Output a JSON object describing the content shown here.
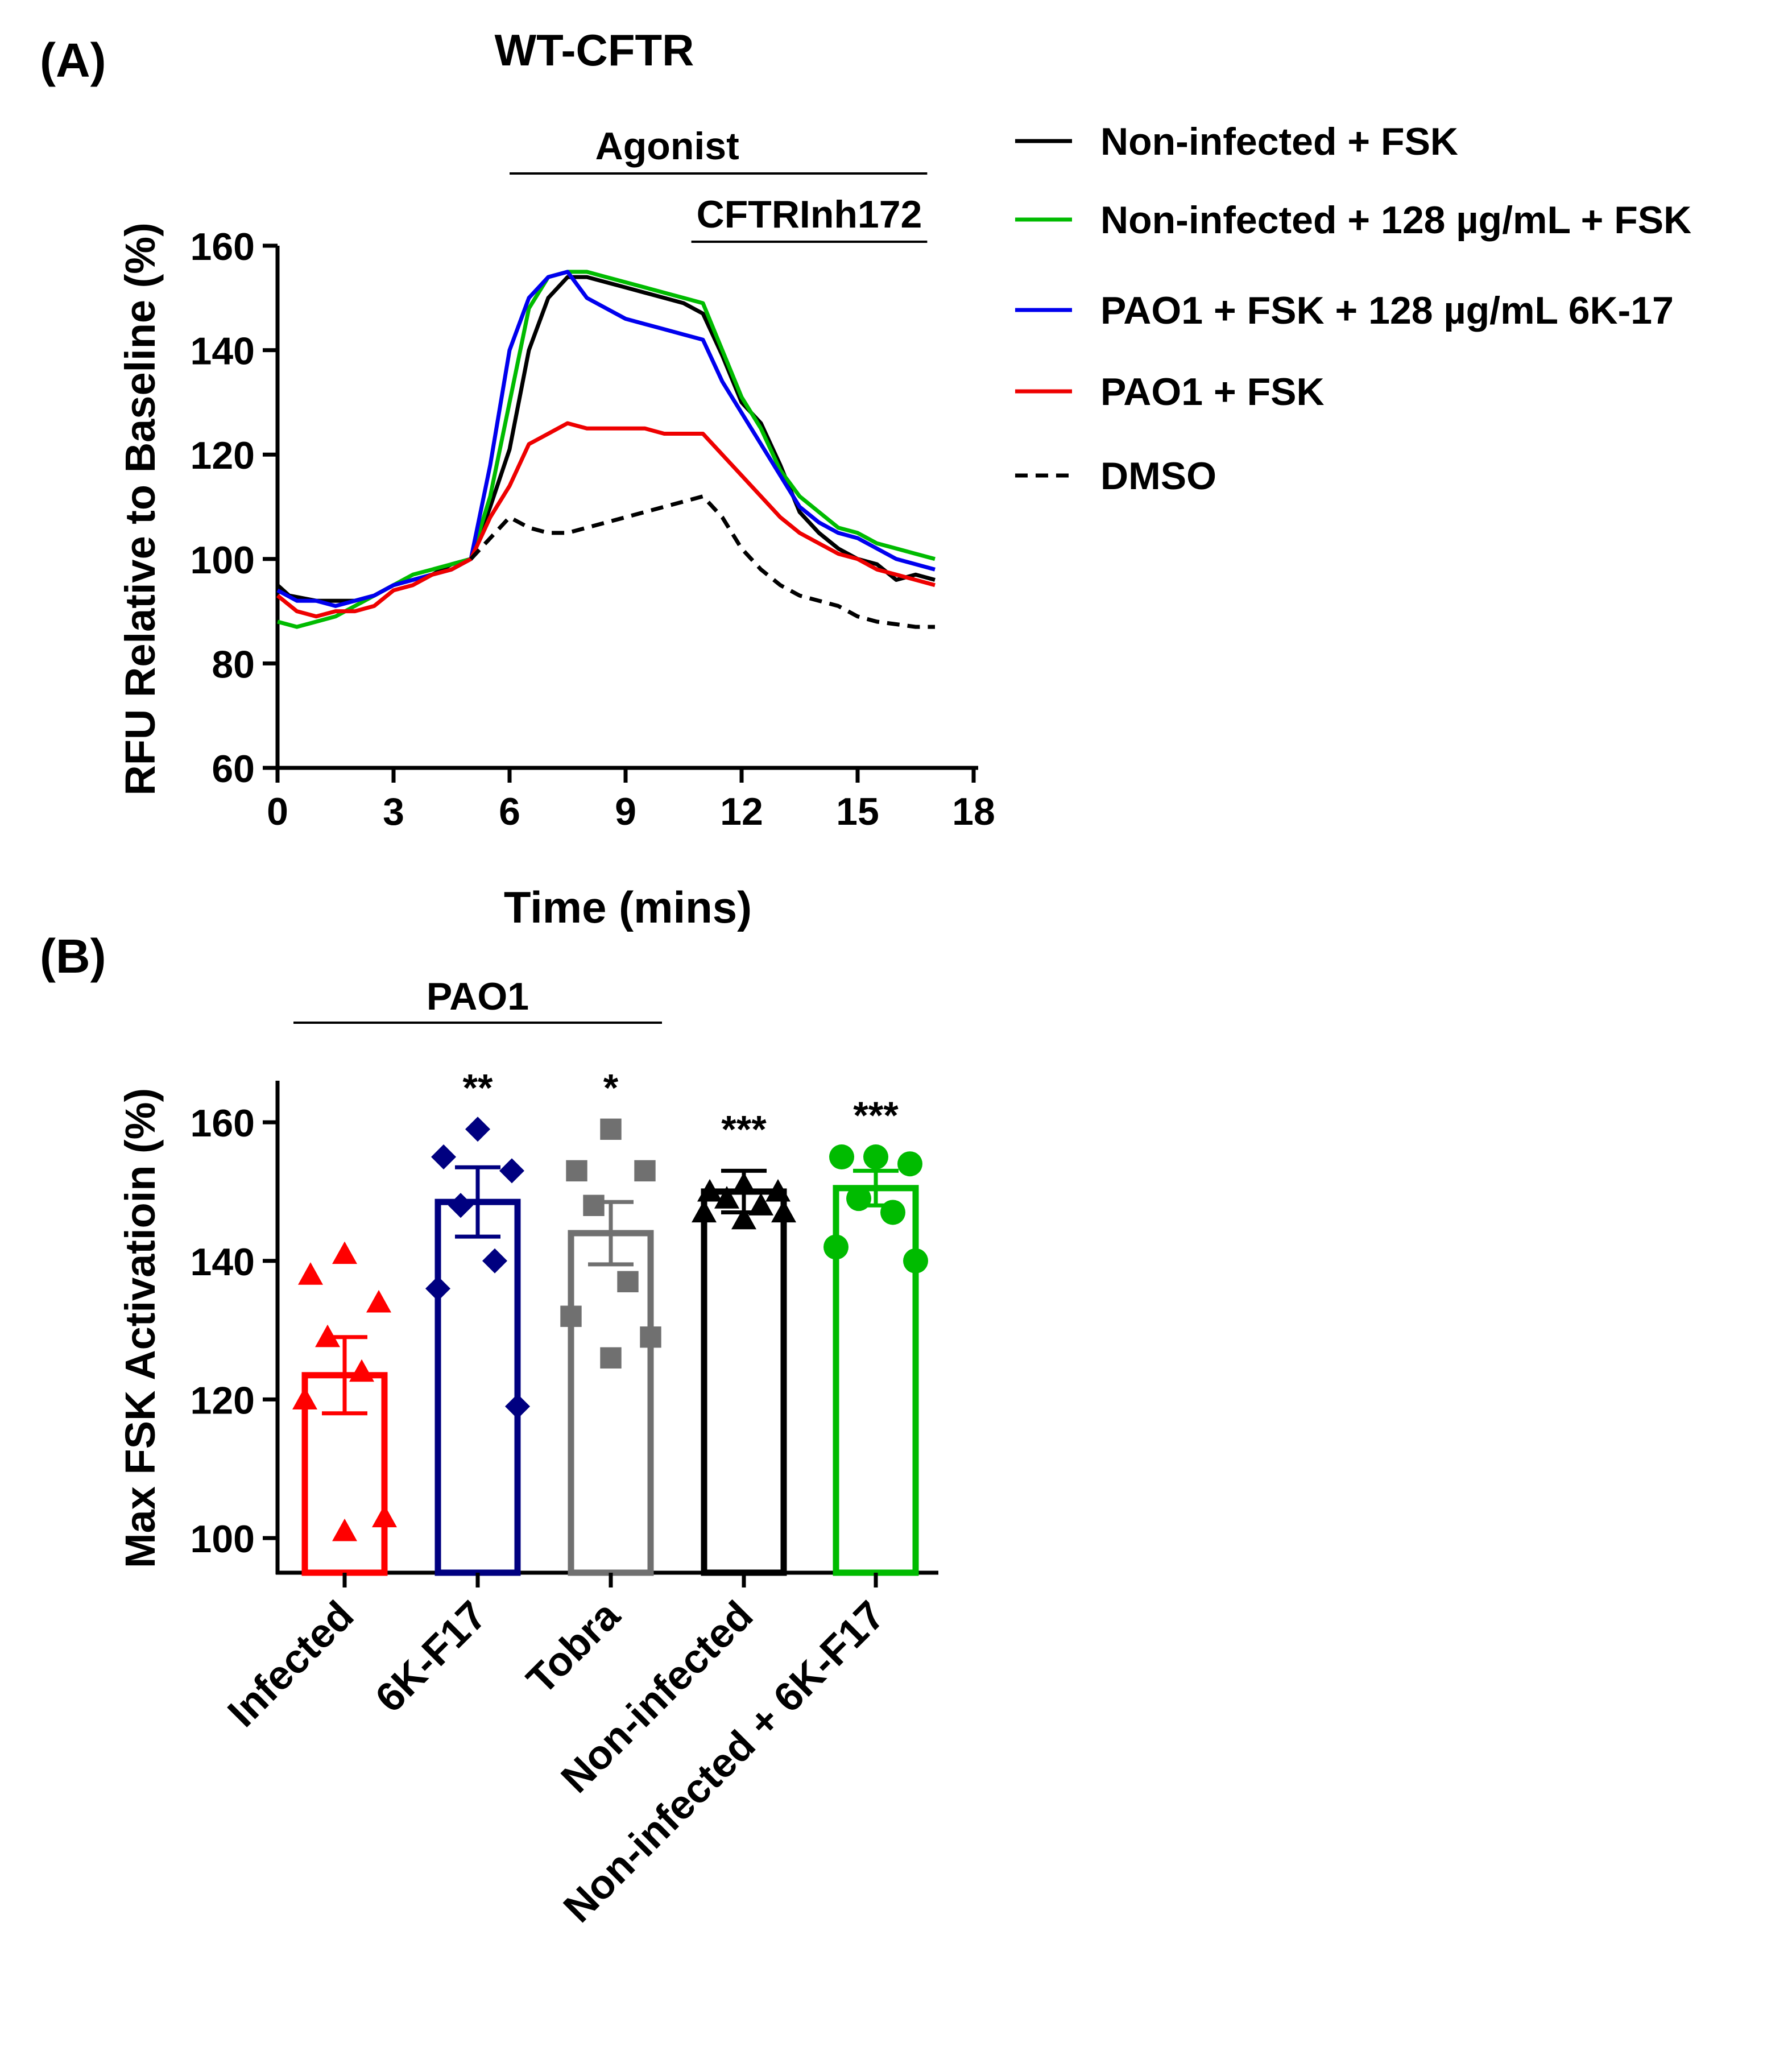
{
  "chart_data": [
    {
      "panel_label": "(A)",
      "type": "line",
      "title": "WT-CFTR",
      "xlabel": "Time (mins)",
      "ylabel": "RFU Relative to Baseline (%)",
      "xlim": [
        0,
        18
      ],
      "ylim": [
        60,
        160
      ],
      "xticks": [
        0,
        3,
        6,
        9,
        12,
        15,
        18
      ],
      "yticks": [
        60,
        80,
        100,
        120,
        140,
        160
      ],
      "annotations": [
        {
          "text": "Agonist",
          "x_start": 6,
          "x_end": 16.8
        },
        {
          "text": "CFTRInh172",
          "x_start": 10.7,
          "x_end": 16.8
        }
      ],
      "legend_position": "right",
      "series": [
        {
          "name": "Non-infected + FSK",
          "color": "#000000",
          "style": "solid",
          "x": [
            0,
            0.3,
            1,
            1.5,
            2,
            2.5,
            3,
            3.5,
            4,
            4.5,
            5,
            5.5,
            6,
            6.5,
            7,
            7.5,
            8,
            8.5,
            9,
            9.5,
            10,
            10.5,
            11,
            11.5,
            12,
            12.5,
            13,
            13.5,
            14,
            14.5,
            15,
            15.5,
            16,
            16.5,
            17
          ],
          "values": [
            95,
            93,
            92,
            92,
            92,
            93,
            95,
            96,
            97,
            99,
            100,
            110,
            121,
            140,
            150,
            154,
            154,
            153,
            152,
            151,
            150,
            149,
            147,
            139,
            130,
            126,
            118,
            109,
            105,
            102,
            100,
            99,
            96,
            97,
            96
          ]
        },
        {
          "name": "Non-infected + 128 µg/mL + FSK",
          "color": "#00bb00",
          "style": "solid",
          "x": [
            0,
            0.5,
            1,
            1.5,
            2,
            2.5,
            3,
            3.5,
            4,
            4.5,
            5,
            5.5,
            6,
            6.5,
            7,
            7.5,
            8,
            8.5,
            9,
            9.5,
            10,
            10.5,
            11,
            11.5,
            12,
            12.5,
            13,
            13.5,
            14,
            14.5,
            15,
            15.5,
            16,
            16.5,
            17
          ],
          "values": [
            88,
            87,
            88,
            89,
            91,
            93,
            95,
            97,
            98,
            99,
            100,
            112,
            130,
            148,
            154,
            155,
            155,
            154,
            153,
            152,
            151,
            150,
            149,
            140,
            131,
            125,
            117,
            112,
            109,
            106,
            105,
            103,
            102,
            101,
            100
          ]
        },
        {
          "name": "PAO1 + FSK + 128 µg/mL 6K-17",
          "color": "#0000ee",
          "style": "solid",
          "x": [
            0,
            0.5,
            1,
            1.5,
            2,
            2.5,
            3,
            3.5,
            4,
            4.5,
            5,
            5.5,
            6,
            6.5,
            7,
            7.5,
            8,
            8.5,
            9,
            9.5,
            10,
            10.5,
            11,
            11.5,
            12,
            12.5,
            13,
            13.5,
            14,
            14.5,
            15,
            15.5,
            16,
            16.5,
            17
          ],
          "values": [
            94,
            92,
            92,
            91,
            92,
            93,
            95,
            96,
            97,
            98,
            100,
            118,
            140,
            150,
            154,
            155,
            150,
            148,
            146,
            145,
            144,
            143,
            142,
            134,
            128,
            122,
            116,
            110,
            107,
            105,
            104,
            102,
            100,
            99,
            98
          ]
        },
        {
          "name": "PAO1 + FSK",
          "color": "#ee0000",
          "style": "solid",
          "x": [
            0,
            0.5,
            1,
            1.5,
            2,
            2.5,
            3,
            3.5,
            4,
            4.5,
            5,
            5.5,
            6,
            6.5,
            7,
            7.5,
            8,
            8.5,
            9,
            9.5,
            10,
            10.5,
            11,
            11.5,
            12,
            12.5,
            13,
            13.5,
            14,
            14.5,
            15,
            15.5,
            16,
            16.5,
            17
          ],
          "values": [
            93,
            90,
            89,
            90,
            90,
            91,
            94,
            95,
            97,
            98,
            100,
            108,
            114,
            122,
            124,
            126,
            125,
            125,
            125,
            125,
            124,
            124,
            124,
            120,
            116,
            112,
            108,
            105,
            103,
            101,
            100,
            98,
            97,
            96,
            95
          ]
        },
        {
          "name": "DMSO",
          "color": "#000000",
          "style": "dashed",
          "x": [
            5,
            5.5,
            6,
            6.5,
            7,
            7.5,
            8,
            8.5,
            9,
            9.5,
            10,
            10.5,
            11,
            11.5,
            12,
            12.5,
            13,
            13.5,
            14,
            14.5,
            15,
            15.5,
            16,
            16.5,
            17
          ],
          "values": [
            100,
            104,
            108,
            106,
            105,
            105,
            106,
            107,
            108,
            109,
            110,
            111,
            112,
            108,
            102,
            98,
            95,
            93,
            92,
            91,
            89,
            88,
            87.5,
            87,
            87
          ]
        }
      ]
    },
    {
      "panel_label": "(B)",
      "type": "bar",
      "title": "",
      "ylabel": "Max  FSK Activatioin (%)",
      "ylim": [
        95,
        166
      ],
      "yticks": [
        100,
        120,
        140,
        160
      ],
      "group_bracket": {
        "text": "PAO1",
        "from_category": 0,
        "to_category": 2
      },
      "categories": [
        "Infected",
        "6K-F17",
        "Tobra",
        "Non-infected",
        "Non-infected + 6K-F17"
      ],
      "values": [
        123.5,
        148.5,
        144,
        150,
        150.5
      ],
      "sem": [
        5.5,
        5,
        4.5,
        3,
        2.5
      ],
      "significance": [
        "",
        "**",
        "*",
        "***",
        "***"
      ],
      "colors": [
        "#ff0000",
        "#000080",
        "#707070",
        "#000000",
        "#00bb00"
      ],
      "marker_shapes": [
        "triangle",
        "diamond",
        "square",
        "triangle",
        "circle"
      ],
      "points": [
        [
          141,
          138,
          134,
          129,
          124,
          120,
          103,
          101
        ],
        [
          159,
          155,
          153,
          148,
          140,
          136,
          119
        ],
        [
          159,
          153,
          153,
          148,
          137,
          132,
          129,
          126
        ],
        [
          151,
          150,
          150,
          149,
          148,
          147,
          147,
          146
        ],
        [
          155,
          155,
          154,
          149,
          147,
          142,
          140
        ]
      ]
    }
  ]
}
